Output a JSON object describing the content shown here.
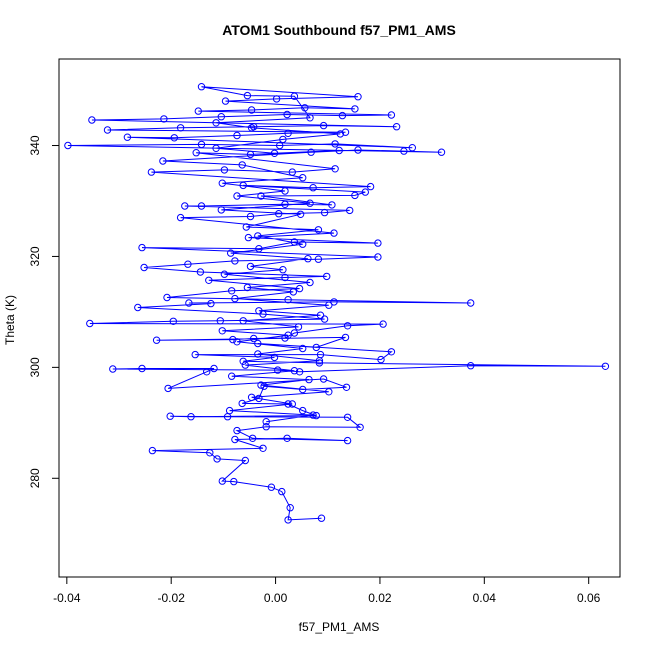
{
  "chart_data": {
    "type": "line",
    "title": "ATOM1 Southbound f57_PM1_AMS",
    "xlabel": "f57_PM1_AMS",
    "ylabel": "Theta (K)",
    "xlim": [
      -0.0415,
      0.066
    ],
    "ylim": [
      262.2,
      355.6
    ],
    "xticks": [
      -0.04,
      -0.02,
      0.0,
      0.02,
      0.04,
      0.06
    ],
    "yticks": [
      280,
      300,
      320,
      340
    ],
    "xtick_labels": [
      "-0.04",
      "-0.02",
      "0.00",
      "0.02",
      "0.04",
      "0.06"
    ],
    "ytick_labels": [
      "280",
      "300",
      "320",
      "340"
    ],
    "grid": false,
    "legend": "none",
    "marker": "open-circle",
    "series": [
      {
        "color": "#0000ff",
        "points": [
          [
            0.0088,
            272.8
          ],
          [
            0.0024,
            272.5
          ],
          [
            0.0028,
            274.7
          ],
          [
            0.0012,
            277.6
          ],
          [
            -0.0008,
            278.4
          ],
          [
            -0.008,
            279.4
          ],
          [
            -0.0102,
            279.5
          ],
          [
            -0.0058,
            283.2
          ],
          [
            -0.0112,
            283.5
          ],
          [
            -0.0126,
            284.6
          ],
          [
            -0.0236,
            285.0
          ],
          [
            -0.0024,
            285.4
          ],
          [
            -0.0078,
            287.0
          ],
          [
            0.0022,
            287.2
          ],
          [
            0.0138,
            286.8
          ],
          [
            -0.0044,
            287.2
          ],
          [
            -0.0074,
            288.6
          ],
          [
            -0.0018,
            289.3
          ],
          [
            0.0162,
            289.2
          ],
          [
            0.0138,
            291.0
          ],
          [
            -0.0092,
            291.1
          ],
          [
            -0.0202,
            291.2
          ],
          [
            -0.0162,
            291.1
          ],
          [
            0.0078,
            291.3
          ],
          [
            0.0052,
            292.2
          ],
          [
            0.0024,
            293.4
          ],
          [
            -0.0064,
            293.5
          ],
          [
            -0.0032,
            294.4
          ],
          [
            -0.0022,
            296.6
          ],
          [
            0.0052,
            296.0
          ],
          [
            0.0136,
            296.4
          ],
          [
            0.0092,
            297.9
          ],
          [
            -0.0206,
            296.2
          ],
          [
            -0.0132,
            299.2
          ],
          [
            -0.0118,
            299.8
          ],
          [
            -0.0256,
            299.8
          ],
          [
            -0.0312,
            299.7
          ],
          [
            0.0004,
            299.5
          ],
          [
            0.0046,
            299.2
          ],
          [
            0.0374,
            300.3
          ],
          [
            0.0632,
            300.2
          ],
          [
            0.0084,
            300.8
          ],
          [
            -0.0062,
            301.1
          ],
          [
            -0.0002,
            301.8
          ],
          [
            -0.0154,
            302.3
          ],
          [
            0.0086,
            302.3
          ],
          [
            0.0202,
            301.4
          ],
          [
            0.0222,
            302.8
          ],
          [
            -0.0034,
            304.3
          ],
          [
            0.0078,
            303.6
          ],
          [
            0.0134,
            305.4
          ],
          [
            -0.0228,
            304.9
          ],
          [
            -0.0082,
            305.0
          ],
          [
            -0.0042,
            305.2
          ],
          [
            0.0018,
            305.3
          ],
          [
            0.0036,
            306.2
          ],
          [
            0.0138,
            307.5
          ],
          [
            0.0206,
            307.8
          ],
          [
            -0.0356,
            307.9
          ],
          [
            -0.0196,
            308.3
          ],
          [
            -0.0106,
            308.4
          ],
          [
            0.0094,
            308.7
          ],
          [
            -0.0024,
            309.6
          ],
          [
            -0.0264,
            310.8
          ],
          [
            -0.0124,
            311.5
          ],
          [
            -0.0166,
            311.6
          ],
          [
            0.0112,
            311.8
          ],
          [
            0.0374,
            311.6
          ],
          [
            0.0024,
            312.2
          ],
          [
            -0.0208,
            312.6
          ],
          [
            -0.0084,
            313.8
          ],
          [
            0.0046,
            314.2
          ],
          [
            -0.0128,
            315.7
          ],
          [
            0.0018,
            316.2
          ],
          [
            0.0098,
            316.4
          ],
          [
            -0.0144,
            317.2
          ],
          [
            -0.0252,
            318.0
          ],
          [
            -0.0168,
            318.6
          ],
          [
            -0.0078,
            319.2
          ],
          [
            0.0082,
            319.5
          ],
          [
            0.0196,
            319.9
          ],
          [
            -0.0256,
            321.6
          ],
          [
            -0.0032,
            321.4
          ],
          [
            0.0036,
            322.6
          ],
          [
            0.0196,
            322.4
          ],
          [
            -0.0052,
            323.4
          ],
          [
            0.0112,
            324.2
          ],
          [
            -0.0182,
            327.0
          ],
          [
            -0.0048,
            327.2
          ],
          [
            0.0006,
            327.7
          ],
          [
            0.0094,
            327.9
          ],
          [
            0.0142,
            328.3
          ],
          [
            -0.0174,
            329.1
          ],
          [
            -0.0142,
            329.1
          ],
          [
            0.0018,
            329.4
          ],
          [
            0.0108,
            329.3
          ],
          [
            -0.0028,
            330.9
          ],
          [
            0.0152,
            331.0
          ],
          [
            0.0172,
            331.6
          ],
          [
            -0.0062,
            332.8
          ],
          [
            0.0072,
            332.4
          ],
          [
            0.0182,
            332.6
          ],
          [
            -0.0238,
            335.2
          ],
          [
            -0.0098,
            335.6
          ],
          [
            0.0032,
            335.2
          ],
          [
            0.0114,
            335.8
          ],
          [
            -0.0152,
            338.7
          ],
          [
            -0.0048,
            338.4
          ],
          [
            0.0068,
            338.8
          ],
          [
            0.0158,
            339.2
          ],
          [
            0.0246,
            339.0
          ],
          [
            0.0318,
            338.8
          ],
          [
            -0.0398,
            340.0
          ],
          [
            -0.0142,
            340.2
          ],
          [
            0.0008,
            340.0
          ],
          [
            0.0114,
            340.3
          ],
          [
            0.0262,
            339.6
          ],
          [
            -0.0284,
            341.5
          ],
          [
            -0.0194,
            341.4
          ],
          [
            -0.0074,
            341.8
          ],
          [
            0.0024,
            342.2
          ],
          [
            0.0134,
            342.4
          ],
          [
            -0.0322,
            342.8
          ],
          [
            -0.0182,
            343.2
          ],
          [
            -0.0042,
            343.4
          ],
          [
            0.0092,
            343.6
          ],
          [
            0.0232,
            343.4
          ],
          [
            -0.0352,
            344.6
          ],
          [
            -0.0214,
            344.8
          ],
          [
            -0.0104,
            345.2
          ],
          [
            0.0022,
            345.6
          ],
          [
            0.0128,
            345.4
          ],
          [
            0.0222,
            345.5
          ],
          [
            -0.0148,
            346.2
          ],
          [
            -0.0046,
            346.4
          ],
          [
            0.0056,
            346.8
          ],
          [
            0.0152,
            346.6
          ],
          [
            -0.0096,
            348.0
          ],
          [
            0.0002,
            348.4
          ],
          [
            0.0158,
            348.8
          ],
          [
            -0.0142,
            350.6
          ],
          [
            -0.0054,
            349.0
          ],
          [
            0.0036,
            348.9
          ],
          [
            0.0066,
            345.0
          ],
          [
            -0.0114,
            344.1
          ],
          [
            -0.0046,
            343.2
          ],
          [
            0.0124,
            342.1
          ],
          [
            0.0014,
            341.1
          ],
          [
            -0.0114,
            339.5
          ],
          [
            -0.0002,
            338.6
          ],
          [
            0.0122,
            339.1
          ],
          [
            -0.0216,
            337.2
          ],
          [
            -0.0064,
            336.5
          ],
          [
            0.0052,
            334.2
          ],
          [
            -0.0102,
            333.2
          ],
          [
            0.0018,
            331.8
          ],
          [
            -0.0074,
            330.9
          ],
          [
            0.0066,
            329.6
          ],
          [
            -0.0104,
            328.4
          ],
          [
            0.0048,
            327.6
          ],
          [
            -0.0056,
            325.3
          ],
          [
            0.0082,
            324.8
          ],
          [
            -0.0034,
            323.7
          ],
          [
            0.0052,
            322.2
          ],
          [
            -0.0086,
            320.6
          ],
          [
            0.0062,
            319.6
          ],
          [
            -0.0048,
            318.2
          ],
          [
            0.0014,
            317.6
          ],
          [
            -0.0098,
            316.8
          ],
          [
            0.0066,
            315.3
          ],
          [
            -0.0054,
            314.4
          ],
          [
            0.0034,
            313.6
          ],
          [
            -0.0078,
            312.4
          ],
          [
            0.0102,
            311.2
          ],
          [
            -0.0032,
            310.2
          ],
          [
            0.0086,
            309.4
          ],
          [
            -0.0062,
            308.4
          ],
          [
            0.0044,
            307.3
          ],
          [
            -0.0102,
            306.6
          ],
          [
            0.0024,
            305.8
          ],
          [
            -0.0074,
            304.6
          ],
          [
            0.0052,
            303.4
          ],
          [
            -0.0034,
            302.4
          ],
          [
            0.0084,
            301.2
          ],
          [
            -0.0058,
            300.4
          ],
          [
            0.0036,
            299.4
          ],
          [
            -0.0084,
            298.4
          ],
          [
            0.0064,
            297.8
          ],
          [
            -0.0028,
            296.8
          ],
          [
            0.0102,
            295.6
          ],
          [
            -0.0046,
            294.6
          ],
          [
            0.0032,
            293.4
          ],
          [
            -0.0088,
            292.2
          ],
          [
            0.0072,
            291.4
          ],
          [
            -0.0018,
            290.2
          ]
        ]
      }
    ]
  }
}
